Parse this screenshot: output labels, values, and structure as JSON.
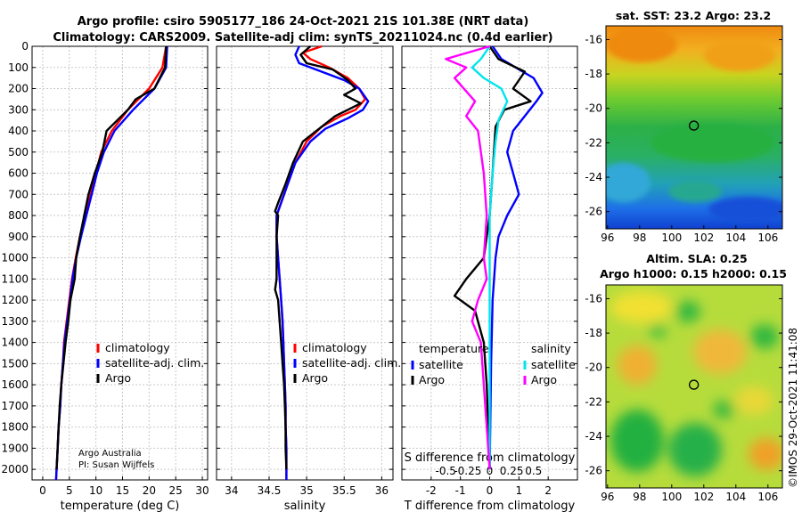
{
  "header": {
    "title_line1": "Argo profile: csiro 5905177_186 24-Oct-2021 21S 101.38E (NRT data)",
    "title_line2": "Climatology: CARS2009. Satellite-adj clim: synTS_20211024.nc (0.4d earlier)"
  },
  "colors": {
    "climatology": "#ff0000",
    "satellite_adj": "#0000ff",
    "argo": "#000000",
    "salinity_sat": "#00e5ee",
    "salinity_argo": "#ff00ff"
  },
  "footer": {
    "institution": "Argo Australia",
    "pi": "PI: Susan Wijffels",
    "credit": "©IMOS 29-Oct-2021 11:41:08"
  },
  "chart_data": [
    {
      "type": "line",
      "id": "temperature",
      "xlabel": "temperature (deg C)",
      "ylabel": "",
      "xlim": [
        -2,
        31
      ],
      "ylim": [
        0,
        2050
      ],
      "xticks": [
        "0",
        "5",
        "10",
        "15",
        "20",
        "25",
        "30"
      ],
      "xtick_values": [
        0,
        5,
        10,
        15,
        20,
        25,
        30
      ],
      "yticks": [
        "0",
        "100",
        "200",
        "300",
        "400",
        "500",
        "600",
        "700",
        "800",
        "900",
        "1000",
        "1100",
        "1200",
        "1300",
        "1400",
        "1500",
        "1600",
        "1700",
        "1800",
        "1900",
        "2000"
      ],
      "ytick_values": [
        0,
        100,
        200,
        300,
        400,
        500,
        600,
        700,
        800,
        900,
        1000,
        1100,
        1200,
        1300,
        1400,
        1500,
        1600,
        1700,
        1800,
        1900,
        2000
      ],
      "legend": [
        "climatology",
        "satellite-adj. clim.",
        "Argo"
      ],
      "series": [
        {
          "name": "climatology",
          "color": "#ff0000",
          "points": [
            [
              23.2,
              0
            ],
            [
              22.5,
              100
            ],
            [
              20,
              200
            ],
            [
              16,
              300
            ],
            [
              13,
              400
            ],
            [
              11,
              500
            ],
            [
              10,
              600
            ],
            [
              9,
              700
            ],
            [
              8,
              800
            ],
            [
              7,
              900
            ],
            [
              6.2,
              1000
            ],
            [
              5.5,
              1100
            ],
            [
              5,
              1200
            ],
            [
              4.5,
              1300
            ],
            [
              4,
              1400
            ],
            [
              3.8,
              1500
            ],
            [
              3.5,
              1600
            ],
            [
              3.3,
              1700
            ],
            [
              3,
              1800
            ],
            [
              2.8,
              1900
            ],
            [
              2.6,
              2000
            ],
            [
              2.5,
              2050
            ]
          ]
        },
        {
          "name": "satellite-adj. clim.",
          "color": "#0000ff",
          "points": [
            [
              23.4,
              0
            ],
            [
              23.2,
              100
            ],
            [
              21,
              200
            ],
            [
              17,
              300
            ],
            [
              13.5,
              400
            ],
            [
              11.5,
              500
            ],
            [
              10.2,
              600
            ],
            [
              9.2,
              700
            ],
            [
              8.2,
              800
            ],
            [
              7.2,
              900
            ],
            [
              6.3,
              1000
            ],
            [
              5.6,
              1100
            ],
            [
              5.1,
              1200
            ],
            [
              4.6,
              1300
            ],
            [
              4.1,
              1400
            ],
            [
              3.8,
              1500
            ],
            [
              3.5,
              1600
            ],
            [
              3.3,
              1700
            ],
            [
              3,
              1800
            ],
            [
              2.8,
              1900
            ],
            [
              2.6,
              2000
            ],
            [
              2.5,
              2050
            ]
          ]
        },
        {
          "name": "Argo",
          "color": "#000000",
          "points": [
            [
              23.2,
              0
            ],
            [
              23,
              100
            ],
            [
              21,
              200
            ],
            [
              17.5,
              250
            ],
            [
              16,
              300
            ],
            [
              12,
              400
            ],
            [
              11.2,
              500
            ],
            [
              9.8,
              600
            ],
            [
              8.6,
              700
            ],
            [
              7.8,
              800
            ],
            [
              7,
              900
            ],
            [
              6.3,
              1000
            ],
            [
              6,
              1100
            ],
            [
              5.2,
              1200
            ],
            [
              4.8,
              1300
            ],
            [
              4.3,
              1400
            ],
            [
              3.9,
              1500
            ],
            [
              3.5,
              1600
            ],
            [
              3.2,
              1700
            ],
            [
              3,
              1800
            ],
            [
              2.8,
              1900
            ],
            [
              2.6,
              2000
            ]
          ]
        }
      ]
    },
    {
      "type": "line",
      "id": "salinity",
      "xlabel": "salinity",
      "xlim": [
        33.8,
        36.15
      ],
      "ylim": [
        0,
        2050
      ],
      "xticks": [
        "34",
        "34.5",
        "35",
        "35.5",
        "36"
      ],
      "xtick_values": [
        34,
        34.5,
        35,
        35.5,
        36
      ],
      "legend": [
        "climatology",
        "satellite-adj. clim.",
        "Argo"
      ],
      "series": [
        {
          "name": "climatology",
          "color": "#ff0000",
          "points": [
            [
              35.2,
              0
            ],
            [
              34.95,
              30
            ],
            [
              35.05,
              60
            ],
            [
              35.3,
              100
            ],
            [
              35.55,
              150
            ],
            [
              35.7,
              200
            ],
            [
              35.78,
              250
            ],
            [
              35.65,
              300
            ],
            [
              35.45,
              330
            ],
            [
              35.2,
              380
            ],
            [
              35,
              450
            ],
            [
              34.85,
              550
            ],
            [
              34.75,
              650
            ],
            [
              34.65,
              750
            ],
            [
              34.6,
              800
            ],
            [
              34.6,
              900
            ],
            [
              34.62,
              1000
            ],
            [
              34.64,
              1100
            ],
            [
              34.66,
              1200
            ],
            [
              34.68,
              1300
            ],
            [
              34.69,
              1400
            ],
            [
              34.7,
              1500
            ],
            [
              34.71,
              1600
            ],
            [
              34.72,
              1700
            ],
            [
              34.72,
              1800
            ],
            [
              34.73,
              1900
            ],
            [
              34.73,
              2000
            ],
            [
              34.73,
              2050
            ]
          ]
        },
        {
          "name": "satellite-adj. clim.",
          "color": "#0000ff",
          "points": [
            [
              34.9,
              0
            ],
            [
              34.85,
              40
            ],
            [
              34.9,
              80
            ],
            [
              35.2,
              120
            ],
            [
              35.5,
              160
            ],
            [
              35.7,
              200
            ],
            [
              35.82,
              260
            ],
            [
              35.75,
              300
            ],
            [
              35.55,
              340
            ],
            [
              35.25,
              390
            ],
            [
              35.05,
              450
            ],
            [
              34.85,
              550
            ],
            [
              34.75,
              650
            ],
            [
              34.65,
              750
            ],
            [
              34.6,
              800
            ],
            [
              34.6,
              900
            ],
            [
              34.62,
              1000
            ],
            [
              34.64,
              1100
            ],
            [
              34.66,
              1200
            ],
            [
              34.68,
              1300
            ],
            [
              34.69,
              1400
            ],
            [
              34.7,
              1500
            ],
            [
              34.71,
              1600
            ],
            [
              34.72,
              1700
            ],
            [
              34.72,
              1800
            ],
            [
              34.73,
              1900
            ],
            [
              34.73,
              2000
            ],
            [
              34.73,
              2050
            ]
          ]
        },
        {
          "name": "Argo",
          "color": "#000000",
          "points": [
            [
              35.05,
              0
            ],
            [
              34.92,
              40
            ],
            [
              35,
              80
            ],
            [
              35.35,
              110
            ],
            [
              35.55,
              160
            ],
            [
              35.65,
              200
            ],
            [
              35.5,
              230
            ],
            [
              35.72,
              270
            ],
            [
              35.55,
              300
            ],
            [
              35.38,
              330
            ],
            [
              35.2,
              380
            ],
            [
              34.95,
              450
            ],
            [
              34.82,
              550
            ],
            [
              34.72,
              650
            ],
            [
              34.62,
              740
            ],
            [
              34.58,
              780
            ],
            [
              34.62,
              800
            ],
            [
              34.6,
              900
            ],
            [
              34.6,
              1000
            ],
            [
              34.6,
              1100
            ],
            [
              34.58,
              1150
            ],
            [
              34.62,
              1200
            ],
            [
              34.64,
              1300
            ],
            [
              34.66,
              1400
            ],
            [
              34.68,
              1500
            ],
            [
              34.7,
              1600
            ],
            [
              34.71,
              1700
            ],
            [
              34.72,
              1800
            ],
            [
              34.72,
              1900
            ],
            [
              34.73,
              2000
            ]
          ]
        }
      ]
    },
    {
      "type": "line",
      "id": "differences",
      "xlabel": "T difference from climatology",
      "xlabel_top": "S difference from climatology",
      "xlim": [
        -3,
        3
      ],
      "ylim": [
        0,
        2050
      ],
      "xticks": [
        "-2",
        "-1",
        "0",
        "1",
        "2"
      ],
      "xtick_values": [
        -2,
        -1,
        0,
        1,
        2
      ],
      "sticks": [
        "-0.5",
        "-0.25",
        "0",
        "0.25",
        "0.5"
      ],
      "stick_values": [
        -0.5,
        -0.25,
        0,
        0.25,
        0.5
      ],
      "legend_temperature_title": "temperature",
      "legend_salinity_title": "salinity",
      "legend_entries": [
        "satellite",
        "Argo"
      ],
      "series": [
        {
          "name": "temperature satellite",
          "color": "#0000ff",
          "points": [
            [
              0.1,
              0
            ],
            [
              0.4,
              60
            ],
            [
              1.5,
              150
            ],
            [
              1.8,
              220
            ],
            [
              1.6,
              260
            ],
            [
              1.2,
              330
            ],
            [
              0.8,
              400
            ],
            [
              0.6,
              500
            ],
            [
              0.8,
              600
            ],
            [
              1,
              700
            ],
            [
              0.6,
              800
            ],
            [
              0.3,
              900
            ],
            [
              0.2,
              1000
            ],
            [
              0.1,
              1200
            ],
            [
              0.05,
              1500
            ],
            [
              0,
              2000
            ]
          ]
        },
        {
          "name": "temperature Argo",
          "color": "#000000",
          "points": [
            [
              0,
              0
            ],
            [
              0.3,
              60
            ],
            [
              1.2,
              120
            ],
            [
              0.8,
              200
            ],
            [
              1.4,
              260
            ],
            [
              0.5,
              300
            ],
            [
              0.2,
              380
            ],
            [
              0.1,
              600
            ],
            [
              0,
              800
            ],
            [
              -0.2,
              1000
            ],
            [
              -0.8,
              1100
            ],
            [
              -1.2,
              1180
            ],
            [
              -0.5,
              1250
            ],
            [
              -0.2,
              1400
            ],
            [
              -0.1,
              1600
            ],
            [
              0,
              2000
            ]
          ]
        },
        {
          "name": "salinity satellite",
          "color": "#00e5ee",
          "points": [
            [
              0,
              0
            ],
            [
              -0.3,
              60
            ],
            [
              -0.6,
              100
            ],
            [
              -0.2,
              150
            ],
            [
              0.4,
              200
            ],
            [
              0.6,
              260
            ],
            [
              0.3,
              350
            ],
            [
              0.2,
              450
            ],
            [
              0.1,
              600
            ],
            [
              0,
              800
            ],
            [
              0,
              1000
            ],
            [
              0,
              2000
            ]
          ]
        },
        {
          "name": "salinity Argo",
          "color": "#ff00ff",
          "points": [
            [
              0,
              0
            ],
            [
              -1.5,
              60
            ],
            [
              -0.8,
              100
            ],
            [
              -1.2,
              150
            ],
            [
              -0.5,
              260
            ],
            [
              -0.8,
              330
            ],
            [
              -0.4,
              400
            ],
            [
              -0.2,
              600
            ],
            [
              -0.1,
              800
            ],
            [
              -0.2,
              1000
            ],
            [
              -0.1,
              1100
            ],
            [
              -0.4,
              1200
            ],
            [
              -0.6,
              1300
            ],
            [
              -0.3,
              1400
            ],
            [
              -0.2,
              1600
            ],
            [
              -0.1,
              1800
            ],
            [
              0,
              2000
            ]
          ]
        }
      ]
    }
  ],
  "maps": [
    {
      "id": "sst",
      "title": "sat. SST: 23.2 Argo: 23.2",
      "xticks": [
        "96",
        "98",
        "100",
        "102",
        "104",
        "106"
      ],
      "xtick_values": [
        96,
        98,
        100,
        102,
        104,
        106
      ],
      "yticks": [
        "-16",
        "-18",
        "-20",
        "-22",
        "-24",
        "-26"
      ],
      "ytick_values": [
        -16,
        -18,
        -20,
        -22,
        -24,
        -26
      ],
      "xlim": [
        95.9,
        106.9
      ],
      "ylim": [
        -27,
        -15.2
      ],
      "marker": [
        101.38,
        -21
      ]
    },
    {
      "id": "sla",
      "title_line1": "Altim. SLA: 0.25",
      "title_line2": "Argo h1000: 0.15 h2000: 0.15",
      "xticks": [
        "96",
        "98",
        "100",
        "102",
        "104",
        "106"
      ],
      "xtick_values": [
        96,
        98,
        100,
        102,
        104,
        106
      ],
      "yticks": [
        "-16",
        "-18",
        "-20",
        "-22",
        "-24",
        "-26"
      ],
      "ytick_values": [
        -16,
        -18,
        -20,
        -22,
        -24,
        -26
      ],
      "xlim": [
        95.9,
        106.9
      ],
      "ylim": [
        -27,
        -15.2
      ],
      "marker": [
        101.38,
        -21
      ]
    }
  ]
}
